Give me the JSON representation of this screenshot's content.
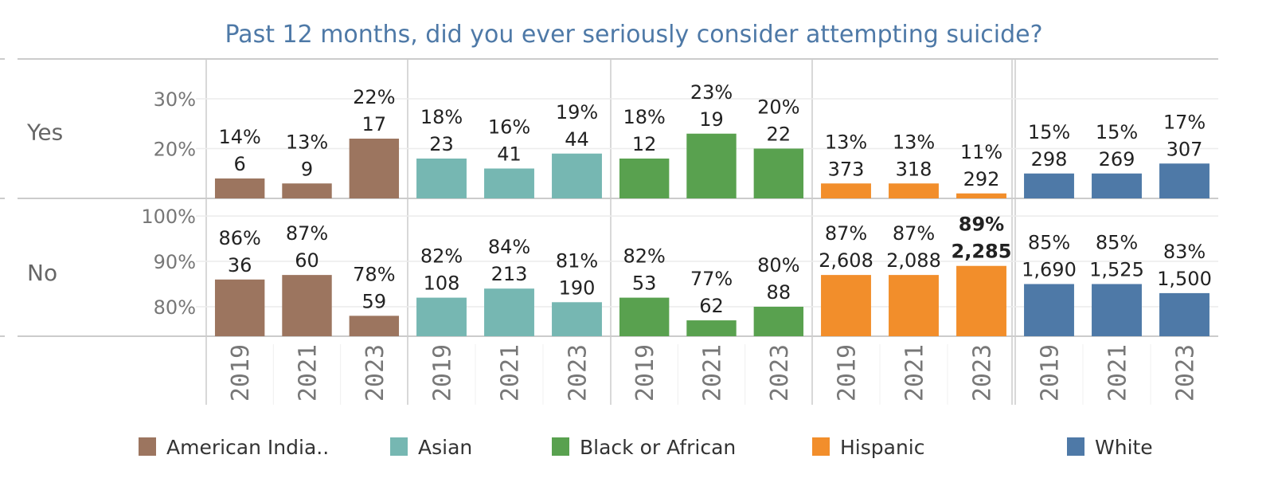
{
  "chart_data": {
    "type": "bar",
    "title": "Past 12 months, did you ever seriously consider attempting suicide?",
    "rows": [
      {
        "key": "yes",
        "label": "Yes",
        "ylim": [
          10,
          38
        ],
        "ticks": [
          20,
          30
        ],
        "tick_labels": [
          "20%",
          "30%"
        ]
      },
      {
        "key": "no",
        "label": "No",
        "ylim": [
          73.5,
          103
        ],
        "ticks": [
          80,
          90,
          100
        ],
        "tick_labels": [
          "80%",
          "90%",
          "100%"
        ]
      }
    ],
    "x": [
      "2019",
      "2021",
      "2023"
    ],
    "series": [
      {
        "name": "American India..",
        "color": "#9c755f",
        "yes": {
          "pct": [
            14,
            13,
            22
          ],
          "pct_labels": [
            "14%",
            "13%",
            "22%"
          ],
          "counts": [
            "6",
            "9",
            "17"
          ]
        },
        "no": {
          "pct": [
            86,
            87,
            78
          ],
          "pct_labels": [
            "86%",
            "87%",
            "78%"
          ],
          "counts": [
            "36",
            "60",
            "59"
          ]
        }
      },
      {
        "name": "Asian",
        "color": "#76b7b2",
        "yes": {
          "pct": [
            18,
            16,
            19
          ],
          "pct_labels": [
            "18%",
            "16%",
            "19%"
          ],
          "counts": [
            "23",
            "41",
            "44"
          ]
        },
        "no": {
          "pct": [
            82,
            84,
            81
          ],
          "pct_labels": [
            "82%",
            "84%",
            "81%"
          ],
          "counts": [
            "108",
            "213",
            "190"
          ]
        }
      },
      {
        "name": "Black or African",
        "color": "#59a14f",
        "yes": {
          "pct": [
            18,
            23,
            20
          ],
          "pct_labels": [
            "18%",
            "23%",
            "20%"
          ],
          "counts": [
            "12",
            "19",
            "22"
          ]
        },
        "no": {
          "pct": [
            82,
            77,
            80
          ],
          "pct_labels": [
            "82%",
            "77%",
            "80%"
          ],
          "counts": [
            "53",
            "62",
            "88"
          ]
        }
      },
      {
        "name": "Hispanic",
        "color": "#f28e2b",
        "yes": {
          "pct": [
            13,
            13,
            11
          ],
          "pct_labels": [
            "13%",
            "13%",
            "11%"
          ],
          "counts": [
            "373",
            "318",
            "292"
          ]
        },
        "no": {
          "pct": [
            87,
            87,
            89
          ],
          "pct_labels": [
            "87%",
            "87%",
            "89%"
          ],
          "counts": [
            "2,608",
            "2,088",
            "2,285"
          ]
        }
      },
      {
        "name": "White",
        "color": "#4e79a7",
        "yes": {
          "pct": [
            15,
            15,
            17
          ],
          "pct_labels": [
            "15%",
            "15%",
            "17%"
          ],
          "counts": [
            "298",
            "269",
            "307"
          ]
        },
        "no": {
          "pct": [
            85,
            85,
            83
          ],
          "pct_labels": [
            "85%",
            "85%",
            "83%"
          ],
          "counts": [
            "1,690",
            "1,525",
            "1,500"
          ]
        }
      }
    ],
    "highlighted": {
      "series": "Hispanic",
      "row": "no",
      "year": "2023"
    },
    "legend": {
      "placement": "bottom",
      "entries": [
        "American India..",
        "Asian",
        "Black or African",
        "Hispanic",
        "White"
      ]
    },
    "grid": true
  }
}
